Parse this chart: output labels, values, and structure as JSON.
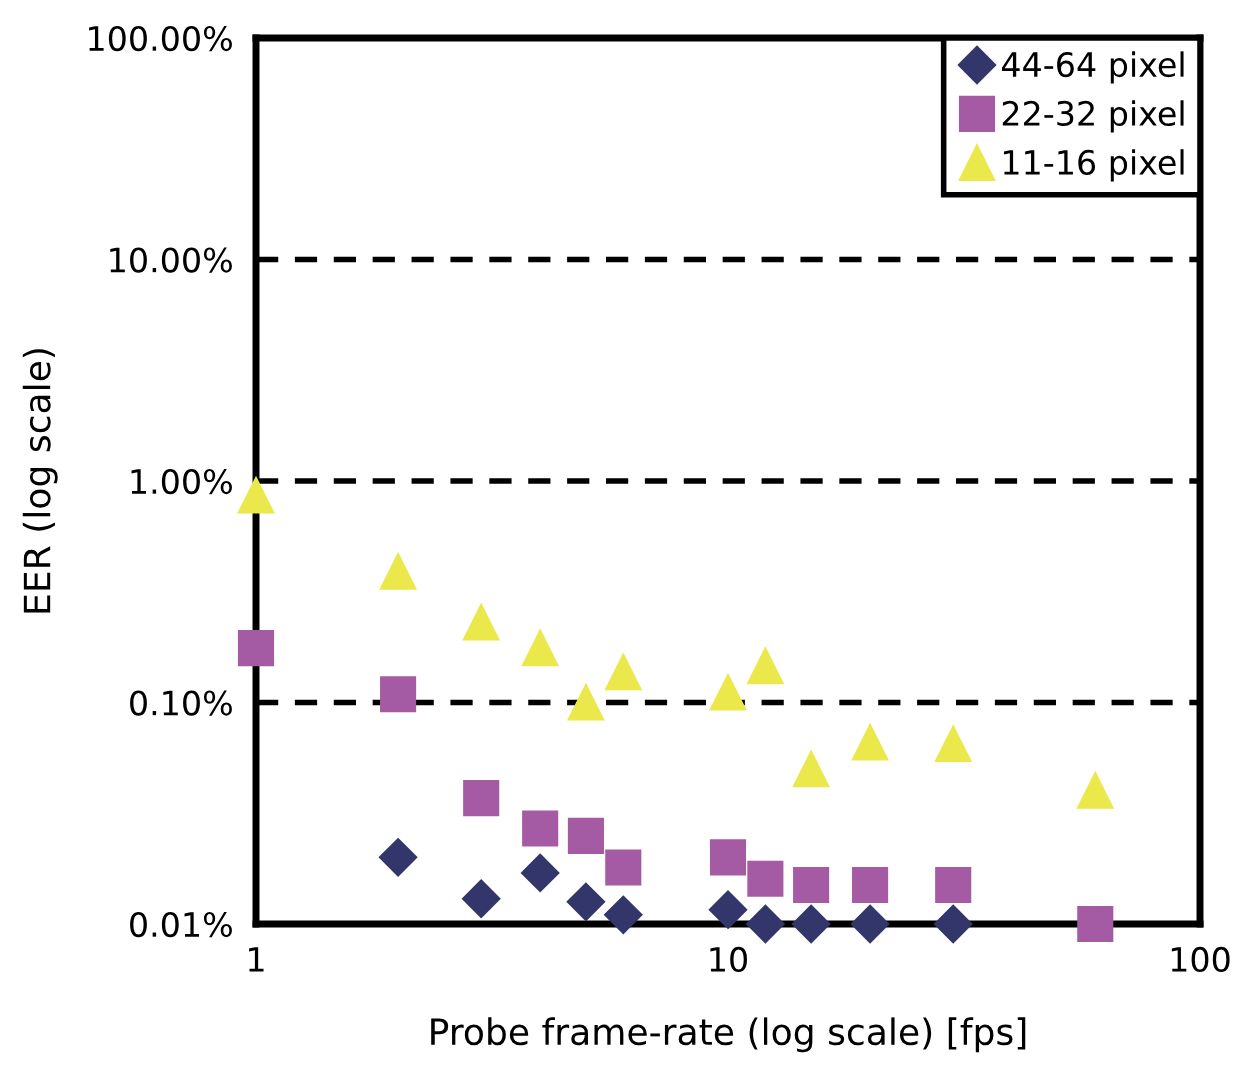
{
  "chart_data": {
    "type": "scatter",
    "xlabel": "Probe frame-rate (log scale) [fps]",
    "ylabel": "EER (log scale)",
    "log": "xy",
    "x": [
      1,
      2,
      3,
      4,
      5,
      6,
      10,
      12,
      15,
      20,
      30,
      60
    ],
    "series": [
      {
        "name": "44-64 pixel",
        "color": "#33366a",
        "marker": "diamond",
        "values": [
          null,
          0.02,
          0.013,
          0.017,
          0.0126,
          0.011,
          0.0116,
          0.01,
          0.01,
          0.01,
          0.01,
          null
        ]
      },
      {
        "name": "22-32 pixel",
        "color": "#a55ba3",
        "marker": "square",
        "values": [
          0.176,
          0.109,
          0.037,
          0.027,
          0.025,
          0.018,
          0.02,
          0.016,
          0.015,
          0.015,
          0.015,
          0.01
        ]
      },
      {
        "name": "11-16 pixel",
        "color": "#ebe84b",
        "marker": "triangle",
        "values": [
          0.86,
          0.39,
          0.23,
          0.176,
          0.1,
          0.137,
          0.111,
          0.146,
          0.05,
          0.066,
          0.065,
          0.04
        ]
      }
    ],
    "xlim": [
      1,
      100
    ],
    "xticks": [
      1,
      10,
      100
    ],
    "ylim": [
      0.01,
      100
    ],
    "yticks": [
      {
        "value": 0.01,
        "label": "0.01%"
      },
      {
        "value": 0.1,
        "label": "0.10%"
      },
      {
        "value": 1,
        "label": "1.00%"
      },
      {
        "value": 10,
        "label": "10.00%"
      },
      {
        "value": 100,
        "label": "100.00%"
      }
    ],
    "grid": "y",
    "legend": "top right"
  }
}
